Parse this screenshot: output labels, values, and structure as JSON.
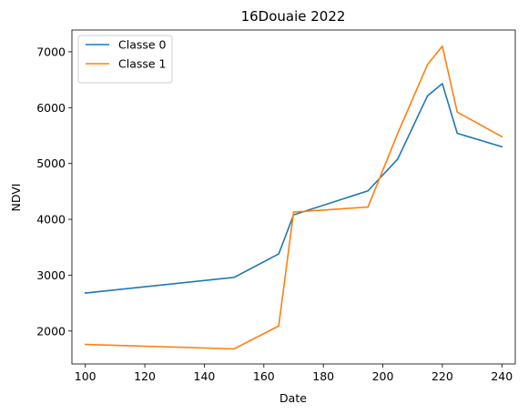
{
  "chart_data": {
    "type": "line",
    "title": "16Douaie 2022",
    "xlabel": "Date",
    "ylabel": "NDVI",
    "xlim": [
      95.5,
      244.5
    ],
    "ylim": [
      1410,
      7390
    ],
    "xticks": [
      100,
      120,
      140,
      160,
      180,
      200,
      220,
      240
    ],
    "yticks": [
      2000,
      3000,
      4000,
      5000,
      6000,
      7000
    ],
    "grid": false,
    "legend": "top-left",
    "series": [
      {
        "name": "Classe 0",
        "color": "#1f77b4",
        "x": [
          100,
          150,
          165,
          170,
          195,
          205,
          215,
          220,
          225,
          240
        ],
        "y": [
          2680,
          2960,
          3380,
          4080,
          4510,
          5080,
          6210,
          6430,
          5540,
          5300
        ]
      },
      {
        "name": "Classe 1",
        "color": "#ff7f0e",
        "x": [
          100,
          150,
          165,
          170,
          195,
          205,
          215,
          220,
          225,
          240
        ],
        "y": [
          1760,
          1680,
          2090,
          4130,
          4220,
          5540,
          6770,
          7100,
          5920,
          5480
        ]
      }
    ]
  }
}
